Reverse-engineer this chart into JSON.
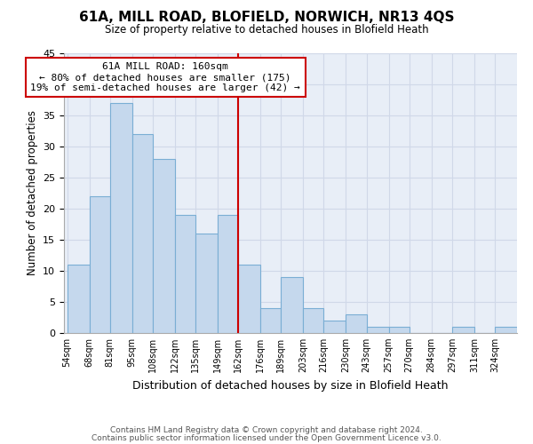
{
  "title": "61A, MILL ROAD, BLOFIELD, NORWICH, NR13 4QS",
  "subtitle": "Size of property relative to detached houses in Blofield Heath",
  "xlabel": "Distribution of detached houses by size in Blofield Heath",
  "ylabel": "Number of detached properties",
  "footer_line1": "Contains HM Land Registry data © Crown copyright and database right 2024.",
  "footer_line2": "Contains public sector information licensed under the Open Government Licence v3.0.",
  "bins": [
    54,
    68,
    81,
    95,
    108,
    122,
    135,
    149,
    162,
    176,
    189,
    203,
    216,
    230,
    243,
    257,
    270,
    284,
    297,
    311,
    324
  ],
  "bin_labels": [
    "54sqm",
    "68sqm",
    "81sqm",
    "95sqm",
    "108sqm",
    "122sqm",
    "135sqm",
    "149sqm",
    "162sqm",
    "176sqm",
    "189sqm",
    "203sqm",
    "216sqm",
    "230sqm",
    "243sqm",
    "257sqm",
    "270sqm",
    "284sqm",
    "297sqm",
    "311sqm",
    "324sqm"
  ],
  "counts": [
    11,
    22,
    37,
    32,
    28,
    19,
    16,
    19,
    11,
    4,
    9,
    4,
    2,
    3,
    1,
    1,
    0,
    0,
    1,
    0,
    1
  ],
  "bar_color": "#c5d8ed",
  "bar_edge_color": "#7aaed4",
  "reference_line_x": 162,
  "reference_line_color": "#cc0000",
  "annotation_title": "61A MILL ROAD: 160sqm",
  "annotation_line1": "← 80% of detached houses are smaller (175)",
  "annotation_line2": "19% of semi-detached houses are larger (42) →",
  "annotation_box_facecolor": "#ffffff",
  "annotation_box_edgecolor": "#cc0000",
  "ylim": [
    0,
    45
  ],
  "yticks": [
    0,
    5,
    10,
    15,
    20,
    25,
    30,
    35,
    40,
    45
  ],
  "grid_color": "#d0d8e8",
  "background_color": "#ffffff",
  "plot_bg_color": "#e8eef7"
}
